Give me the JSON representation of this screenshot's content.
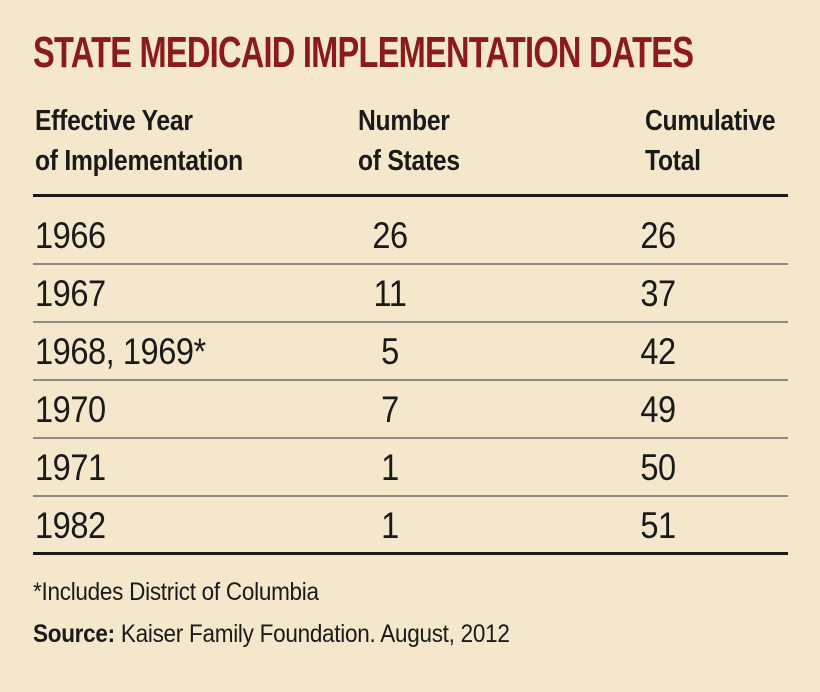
{
  "title": "STATE MEDICAID IMPLEMENTATION DATES",
  "colors": {
    "background": "#f4e7cb",
    "title_text": "#8b1a1a",
    "body_text": "#1a1a1a",
    "row_divider": "#8a8a8a",
    "table_rule": "#1a1a1a"
  },
  "header": {
    "col1": {
      "line1": "Effective Year",
      "line2": "of Implementation"
    },
    "col2": {
      "line1": "Number",
      "line2": "of States"
    },
    "col3": {
      "line1": "Cumulative",
      "line2": "Total"
    }
  },
  "footer": {
    "footnote": "*Includes District of Columbia",
    "source_label": "Source:",
    "source_rest": " Kaiser Family Foundation. August, 2012"
  },
  "chart_data": {
    "type": "table",
    "title": "STATE MEDICAID IMPLEMENTATION DATES",
    "columns": [
      "Effective Year of Implementation",
      "Number of States",
      "Cumulative Total"
    ],
    "rows": [
      [
        "1966",
        26,
        26
      ],
      [
        "1967",
        11,
        37
      ],
      [
        "1968, 1969*",
        5,
        42
      ],
      [
        "1970",
        7,
        49
      ],
      [
        "1971",
        1,
        50
      ],
      [
        "1982",
        1,
        51
      ]
    ],
    "footnote": "*Includes District of Columbia",
    "source": "Source: Kaiser Family Foundation. August, 2012"
  }
}
